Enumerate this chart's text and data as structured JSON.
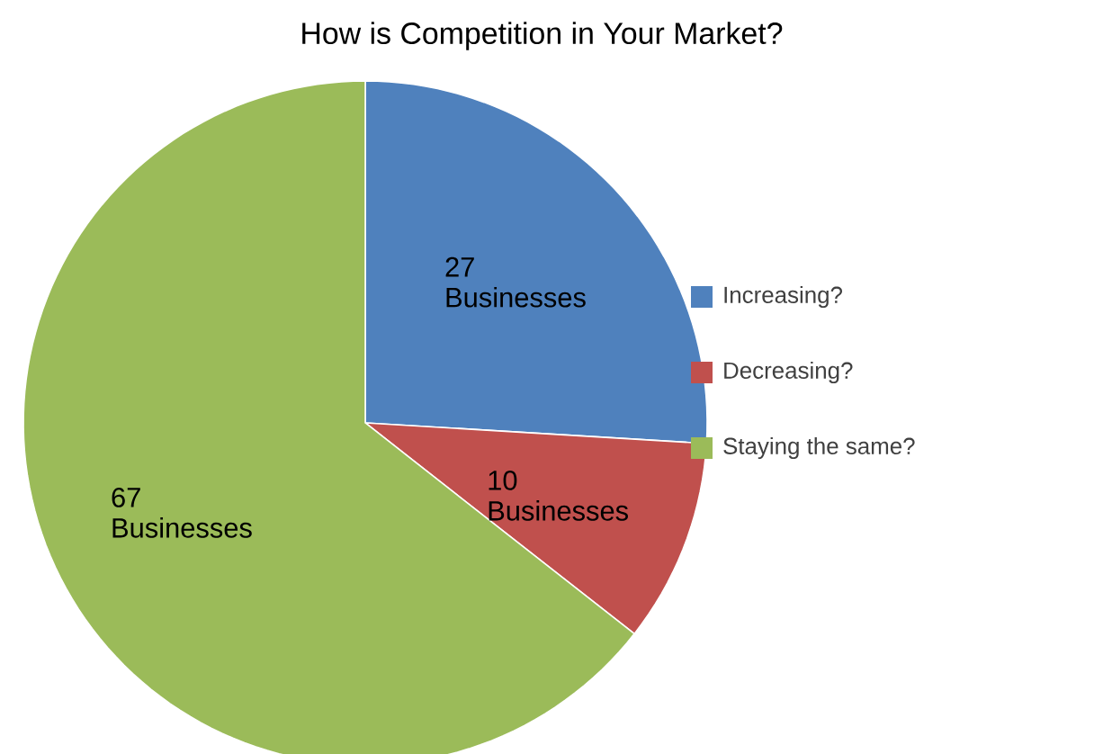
{
  "chart_data": {
    "type": "pie",
    "title": "How is Competition in Your Market?",
    "categories": [
      "Increasing?",
      "Decreasing?",
      "Staying the same?"
    ],
    "values": [
      27,
      10,
      67
    ],
    "value_labels": [
      "27 Businesses",
      "10 Businesses",
      "67 Businesses"
    ],
    "colors": [
      "#4f81bd",
      "#c0504d",
      "#9bbb59"
    ],
    "legend": "right"
  }
}
